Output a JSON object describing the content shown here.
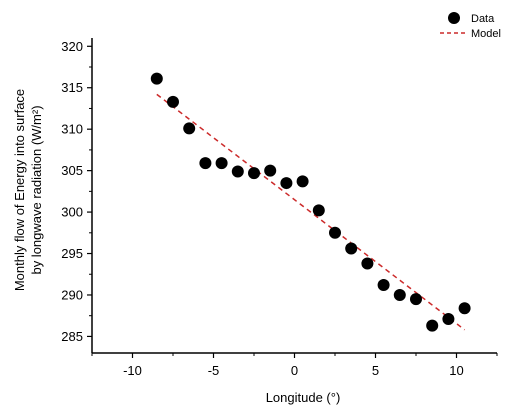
{
  "chart_data": {
    "type": "scatter",
    "title": "",
    "xlabel": "Longitude (°)",
    "ylabel_line1": "Monthly flow of Energy into surface",
    "ylabel_line2": "by longwave radiation (W/m²)",
    "xlim": [
      -12.5,
      12.5
    ],
    "ylim": [
      283,
      321
    ],
    "xticks": [
      -10,
      -5,
      0,
      5,
      10
    ],
    "yticks": [
      285,
      290,
      295,
      300,
      305,
      310,
      315,
      320
    ],
    "legend_placement": "top-right",
    "series": [
      {
        "name": "Data",
        "kind": "points",
        "color": "#000000",
        "x": [
          -8.5,
          -7.5,
          -6.5,
          -5.5,
          -4.5,
          -3.5,
          -2.5,
          -1.5,
          -0.5,
          0.5,
          1.5,
          2.5,
          3.5,
          4.5,
          5.5,
          6.5,
          7.5,
          8.5,
          9.5,
          10.5
        ],
        "y": [
          316.1,
          313.3,
          310.1,
          305.9,
          305.9,
          304.9,
          304.7,
          305.0,
          303.5,
          303.7,
          300.2,
          297.5,
          295.6,
          293.8,
          291.2,
          290.0,
          289.5,
          286.3,
          287.1,
          288.4
        ]
      },
      {
        "name": "Model",
        "kind": "dashed-line",
        "color": "#cc2a2a",
        "x": [
          -8.5,
          10.5
        ],
        "y": [
          314.2,
          285.8
        ]
      }
    ]
  }
}
